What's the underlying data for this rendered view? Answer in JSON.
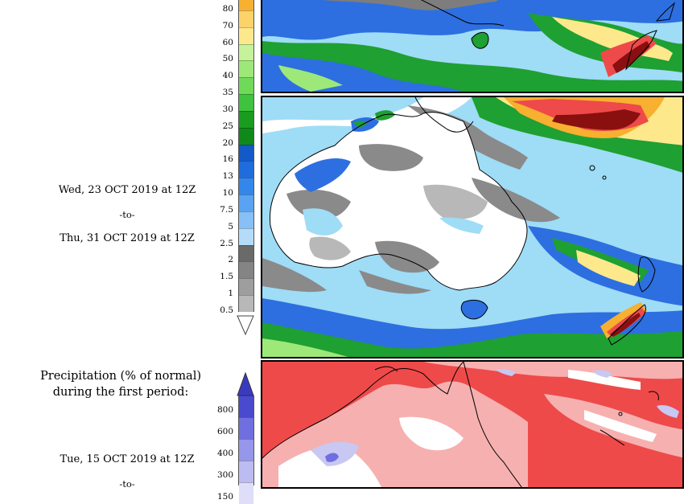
{
  "colorbar_top": {
    "labels": [
      "80",
      "70",
      "60",
      "50",
      "40",
      "35",
      "30",
      "25",
      "20",
      "16",
      "13",
      "10",
      "7.5",
      "5",
      "2.5",
      "2",
      "1.5",
      "1",
      "0.5"
    ],
    "colors": [
      "#f7b02f",
      "#fbd36a",
      "#fde88c",
      "#c5f29a",
      "#9ee87a",
      "#6fda58",
      "#3fc23d",
      "#1a9c20",
      "#0f8a1a",
      "#1459c8",
      "#1f6ddc",
      "#3487ea",
      "#5aa3f2",
      "#86c0f6",
      "#b4dcfa",
      "#6a6a6a",
      "#848484",
      "#9e9e9e",
      "#b8b8b8"
    ]
  },
  "colorbar_bottom": {
    "labels": [
      "800",
      "600",
      "400",
      "300",
      "150"
    ],
    "colors": [
      "#4a4ad0",
      "#6f6fe0",
      "#9696ea",
      "#bcbcf2",
      "#dedef8"
    ]
  },
  "period": {
    "start": "Wed, 23 OCT 2019 at 12Z",
    "to": "-to-",
    "end": "Thu, 31 OCT 2019 at 12Z"
  },
  "anomaly": {
    "title_line1": "Precipitation (% of normal)",
    "title_line2": "during the first period:",
    "start": "Tue, 15 OCT 2019 at 12Z",
    "to": "-to-"
  },
  "palette": {
    "dry": "#ffffff",
    "grey": "#8a8a8a",
    "light_blue": "#9fdcf6",
    "blue": "#2d6fe0",
    "green": "#1ea032",
    "light_green": "#9ee87a",
    "red": "#ee4a4a",
    "pink": "#f6b0b0",
    "lavender": "#c8c8f2"
  }
}
